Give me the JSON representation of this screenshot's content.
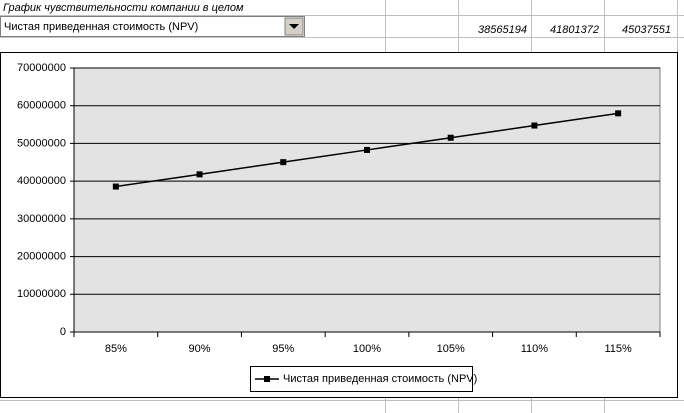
{
  "sheet": {
    "title": "График чувствительности компании в целом",
    "dropdown": "Чистая приведенная стоимость (NPV)",
    "cells": [
      "38565194",
      "41801372",
      "45037551"
    ]
  },
  "chart_data": {
    "type": "line",
    "categories": [
      "85%",
      "90%",
      "95%",
      "100%",
      "105%",
      "110%",
      "115%"
    ],
    "series": [
      {
        "name": "Чистая приведенная стоимость (NPV)",
        "color": "#000000",
        "values": [
          38565194,
          41801372,
          45037551,
          48273729,
          51509907,
          54746085,
          57982263
        ]
      }
    ],
    "ylim": [
      0,
      70000000
    ],
    "yticks": [
      0,
      10000000,
      20000000,
      30000000,
      40000000,
      50000000,
      60000000,
      70000000
    ],
    "grid": true,
    "plot_background": "#e3e3e3",
    "legend": "bottom"
  }
}
